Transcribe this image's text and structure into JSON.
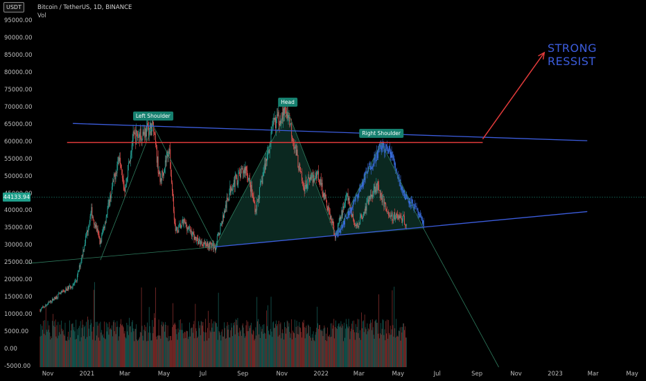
{
  "header": {
    "currency_badge": "USDT",
    "symbol": "Bitcoin / TetherUS, 1D, BINANCE",
    "indicator": "Vol"
  },
  "price_badge": "44133.94",
  "annotations": {
    "strong_resist": "STRONG RESSIST"
  },
  "colors": {
    "candle_up": "#26a69a",
    "candle_down": "#ef5350",
    "proj_candle": "#3a6fe0",
    "resistance": "#e23b3b",
    "trendline": "#3c5dde",
    "pattern_fill": "#0d2f26",
    "label_bg": "#16806f"
  },
  "chart_data": {
    "type": "candlestick",
    "title": "Bitcoin / TetherUS, 1D, BINANCE",
    "ylim": [
      -5000,
      100000
    ],
    "y_ticks": [
      -5000,
      0,
      5000,
      10000,
      15000,
      20000,
      25000,
      30000,
      35000,
      40000,
      45000,
      50000,
      55000,
      60000,
      65000,
      70000,
      75000,
      80000,
      85000,
      90000,
      95000
    ],
    "y_tick_labels": [
      "-5000.00",
      "0.00",
      "5000.00",
      "10000.00",
      "15000.00",
      "20000.00",
      "25000.00",
      "30000.00",
      "35000.00",
      "40000.00",
      "45000.00",
      "50000.00",
      "55000.00",
      "60000.00",
      "65000.00",
      "70000.00",
      "75000.00",
      "80000.00",
      "85000.00",
      "90000.00",
      "95000.00"
    ],
    "x_axis_labels": [
      {
        "label": "Nov",
        "date": "2020-11-01"
      },
      {
        "label": "2021",
        "date": "2021-01-01"
      },
      {
        "label": "Mar",
        "date": "2021-03-01"
      },
      {
        "label": "May",
        "date": "2021-05-01"
      },
      {
        "label": "Jul",
        "date": "2021-07-01"
      },
      {
        "label": "Sep",
        "date": "2021-09-01"
      },
      {
        "label": "Nov",
        "date": "2021-11-01"
      },
      {
        "label": "2022",
        "date": "2022-01-01"
      },
      {
        "label": "Mar",
        "date": "2022-03-01"
      },
      {
        "label": "May",
        "date": "2022-05-01"
      },
      {
        "label": "Jul",
        "date": "2022-07-01"
      },
      {
        "label": "Sep",
        "date": "2022-09-01"
      },
      {
        "label": "Nov",
        "date": "2022-11-01"
      },
      {
        "label": "2023",
        "date": "2023-01-01"
      },
      {
        "label": "Mar",
        "date": "2023-03-01"
      },
      {
        "label": "May",
        "date": "2023-05-01"
      }
    ],
    "price_path": [
      [
        "2020-10-20",
        11500
      ],
      [
        "2020-11-15",
        15500
      ],
      [
        "2020-12-15",
        19500
      ],
      [
        "2021-01-08",
        40000
      ],
      [
        "2021-01-22",
        31000
      ],
      [
        "2021-02-21",
        57000
      ],
      [
        "2021-03-01",
        46000
      ],
      [
        "2021-03-13",
        61000
      ],
      [
        "2021-04-14",
        64500
      ],
      [
        "2021-04-25",
        48500
      ],
      [
        "2021-05-09",
        58500
      ],
      [
        "2021-05-19",
        34000
      ],
      [
        "2021-06-01",
        37000
      ],
      [
        "2021-06-22",
        31500
      ],
      [
        "2021-07-20",
        29800
      ],
      [
        "2021-08-14",
        47500
      ],
      [
        "2021-09-06",
        52700
      ],
      [
        "2021-09-21",
        40500
      ],
      [
        "2021-10-20",
        66000
      ],
      [
        "2021-11-10",
        69000
      ],
      [
        "2021-12-04",
        47000
      ],
      [
        "2021-12-27",
        51000
      ],
      [
        "2022-01-24",
        33000
      ],
      [
        "2022-02-10",
        45000
      ],
      [
        "2022-02-24",
        35000
      ],
      [
        "2022-03-28",
        48000
      ],
      [
        "2022-04-18",
        38500
      ],
      [
        "2022-05-02",
        38500
      ],
      [
        "2022-05-14",
        37000
      ]
    ],
    "projected_path": [
      [
        "2022-01-24",
        33000
      ],
      [
        "2022-02-20",
        42000
      ],
      [
        "2022-03-15",
        52000
      ],
      [
        "2022-04-05",
        59000
      ],
      [
        "2022-04-20",
        57000
      ],
      [
        "2022-05-10",
        45000
      ],
      [
        "2022-05-25",
        42000
      ],
      [
        "2022-06-10",
        36000
      ]
    ],
    "volume_range": [
      -5000,
      25000
    ],
    "pattern": "head and shoulders",
    "pattern_points": [
      {
        "name": "left_base",
        "date": "2021-01-22",
        "price": 26000
      },
      {
        "name": "left_shoulder",
        "date": "2021-04-14",
        "price": 65000,
        "label": "Left Shoulder"
      },
      {
        "name": "left_neck",
        "date": "2021-07-20",
        "price": 29800
      },
      {
        "name": "head",
        "date": "2021-11-10",
        "price": 69000,
        "label": "Head"
      },
      {
        "name": "right_neck",
        "date": "2022-01-24",
        "price": 33000
      },
      {
        "name": "right_shoulder",
        "date": "2022-04-05",
        "price": 60000,
        "label": "Right Shoulder"
      },
      {
        "name": "breakdown",
        "date": "2022-06-10",
        "price": 35000
      }
    ],
    "resistance_line": {
      "price": 60000,
      "start": "2020-12-01",
      "end": "2022-09-10"
    },
    "upper_trendline": {
      "start": [
        "2020-12-10",
        65500
      ],
      "end": [
        "2023-02-20",
        60500
      ]
    },
    "lower_trendline": {
      "start": [
        "2021-07-20",
        29800
      ],
      "end": [
        "2023-02-20",
        40000
      ]
    },
    "left_trendline": {
      "start": [
        "2020-10-01",
        25000
      ],
      "end": [
        "2021-07-20",
        29800
      ]
    },
    "breakdown_line": {
      "start": [
        "2022-06-10",
        35000
      ],
      "end": [
        "2022-10-05",
        -5000
      ]
    },
    "arrow": {
      "start": [
        "2022-09-10",
        61000
      ],
      "end": [
        "2022-12-15",
        86000
      ]
    }
  }
}
